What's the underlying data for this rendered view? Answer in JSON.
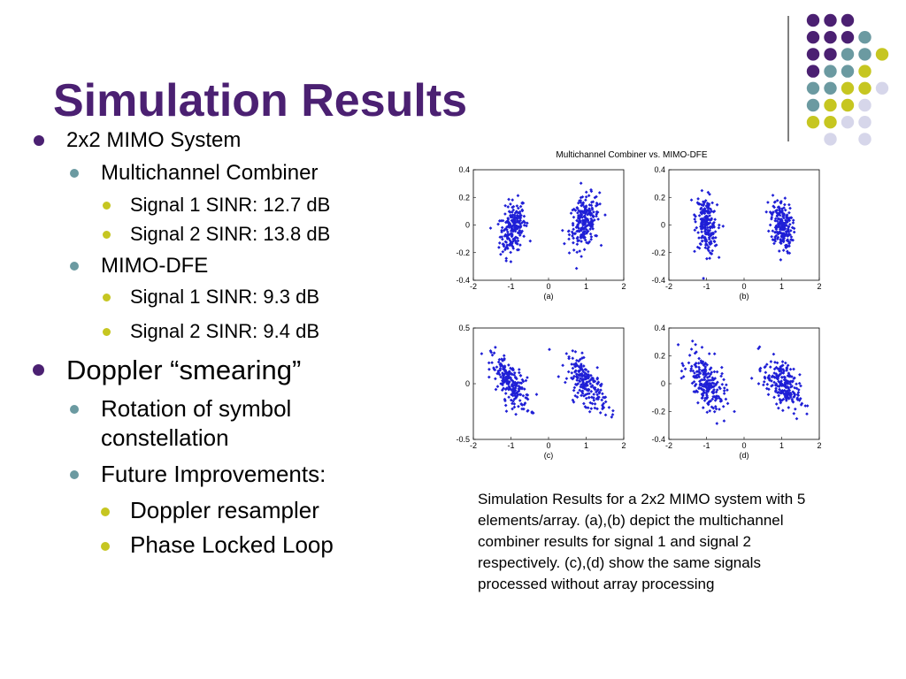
{
  "slide": {
    "title": "Simulation Results",
    "bullets": [
      {
        "level": 1,
        "text": "2x2 MIMO System"
      },
      {
        "level": 2,
        "text": "Multichannel Combiner"
      },
      {
        "level": 3,
        "text": "Signal 1 SINR: 12.7 dB"
      },
      {
        "level": 3,
        "text": "Signal 2 SINR: 13.8 dB"
      },
      {
        "level": 2,
        "text": "MIMO-DFE"
      },
      {
        "level": 3,
        "text": "Signal 1 SINR: 9.3 dB"
      },
      {
        "level": 3,
        "text": "Signal 2 SINR: 9.4 dB"
      },
      {
        "level": 1,
        "text": "Doppler “smearing”"
      },
      {
        "level": 2,
        "text": "Rotation of symbol"
      },
      {
        "level": 2,
        "text": "constellation"
      },
      {
        "level": 2,
        "text": "Future Improvements:"
      },
      {
        "level": 3,
        "text": "Doppler resampler"
      },
      {
        "level": 3,
        "text": "Phase Locked Loop"
      }
    ],
    "caption": "Simulation Results for a 2x2 MIMO system with 5 elements/array. (a),(b) depict the multichannel combiner results for signal 1 and signal 2 respectively. (c),(d) show the same signals processed without array processing"
  },
  "colors": {
    "title": "#4b2072",
    "purple": "#4b2072",
    "teal": "#6b9aa1",
    "olive": "#c6c621",
    "lavender": "#d6d6ea",
    "points": "#1f1fd6"
  },
  "chart_data": {
    "type": "scatter",
    "title": "Multichannel Combiner vs. MIMO-DFE",
    "panels": [
      {
        "label": "(a)",
        "xlim": [
          -2,
          2
        ],
        "ylim": [
          -0.4,
          0.4
        ],
        "xticks": [
          "-2",
          "-1",
          "0",
          "1",
          "2"
        ],
        "yticks": [
          "-0.4",
          "-0.2",
          "0",
          "0.2",
          "0.4"
        ],
        "clusters": [
          {
            "center": [
              -0.95,
              -0.02
            ],
            "spread": [
              0.17,
              0.09
            ],
            "slope": 0.18
          },
          {
            "center": [
              0.95,
              0.02
            ],
            "spread": [
              0.2,
              0.09
            ],
            "slope": 0.14
          }
        ]
      },
      {
        "label": "(b)",
        "xlim": [
          -2,
          2
        ],
        "ylim": [
          -0.4,
          0.4
        ],
        "xticks": [
          "-2",
          "-1",
          "0",
          "1",
          "2"
        ],
        "yticks": [
          "-0.4",
          "-0.2",
          "0",
          "0.2",
          "0.4"
        ],
        "clusters": [
          {
            "center": [
              -1.0,
              0.0
            ],
            "spread": [
              0.14,
              0.1
            ],
            "slope": -0.2
          },
          {
            "center": [
              1.0,
              0.0
            ],
            "spread": [
              0.14,
              0.09
            ],
            "slope": -0.18
          }
        ]
      },
      {
        "label": "(c)",
        "xlim": [
          -2,
          2
        ],
        "ylim": [
          -0.5,
          0.5
        ],
        "xticks": [
          "-2",
          "-1",
          "0",
          "1",
          "2"
        ],
        "yticks": [
          "-0.5",
          "0",
          "0.5"
        ],
        "clusters": [
          {
            "center": [
              -1.0,
              0.0
            ],
            "spread": [
              0.26,
              0.09
            ],
            "slope": -0.3
          },
          {
            "center": [
              1.0,
              0.0
            ],
            "spread": [
              0.26,
              0.09
            ],
            "slope": -0.3
          }
        ]
      },
      {
        "label": "(d)",
        "xlim": [
          -2,
          2
        ],
        "ylim": [
          -0.4,
          0.4
        ],
        "xticks": [
          "-2",
          "-1",
          "0",
          "1",
          "2"
        ],
        "yticks": [
          "-0.4",
          "-0.2",
          "0",
          "0.2",
          "0.4"
        ],
        "clusters": [
          {
            "center": [
              -1.0,
              0.0
            ],
            "spread": [
              0.25,
              0.09
            ],
            "slope": -0.22
          },
          {
            "center": [
              1.0,
              0.0
            ],
            "spread": [
              0.24,
              0.08
            ],
            "slope": -0.2
          }
        ]
      }
    ]
  }
}
